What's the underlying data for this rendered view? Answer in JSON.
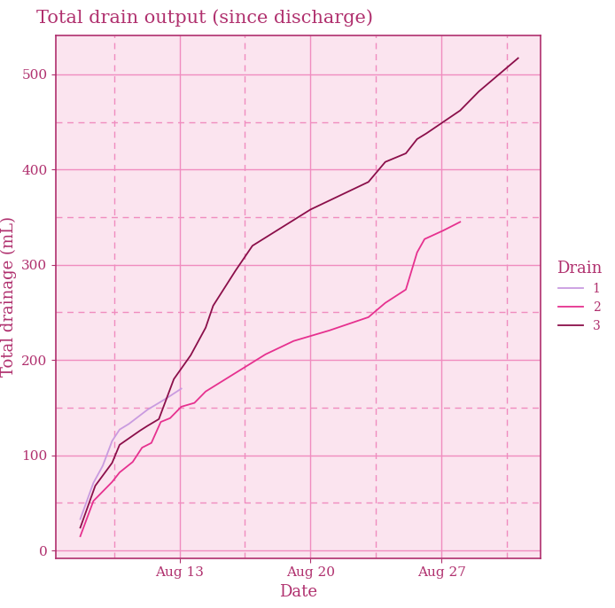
{
  "chart_data": {
    "type": "line",
    "title": "Total drain output (since discharge)",
    "x_label": "Date",
    "y_label": "Total drainage (mL)",
    "legend_title": "Drain",
    "legend": "right",
    "grid": true,
    "xlim": [
      6.4,
      32.3
    ],
    "xticks": [
      {
        "value": 13,
        "label": "Aug 13"
      },
      {
        "value": 20,
        "label": "Aug 20"
      },
      {
        "value": 27,
        "label": "Aug 27"
      }
    ],
    "ylim": [
      -8,
      541
    ],
    "yticks": [
      0,
      100,
      200,
      300,
      400,
      500
    ],
    "series": [
      {
        "name": "1",
        "color": "#c99be0",
        "x": [
          7.7,
          8.4,
          8.9,
          9.4,
          9.8,
          10.3,
          10.9,
          11.3,
          11.9,
          12.4,
          13.1
        ],
        "values": [
          33,
          71,
          89,
          115,
          127,
          133,
          142,
          148,
          155,
          161,
          170
        ]
      },
      {
        "name": "2",
        "color": "#e6318f",
        "x": [
          7.7,
          8.4,
          9.4,
          9.8,
          10.5,
          11.0,
          11.5,
          12.0,
          12.5,
          13.1,
          13.8,
          14.4,
          17.6,
          19.1,
          21.0,
          23.1,
          24.0,
          25.1,
          25.7,
          26.1,
          27.1,
          28.0
        ],
        "values": [
          15,
          52,
          72,
          82,
          93,
          108,
          113,
          135,
          139,
          151,
          155,
          167,
          206,
          220,
          231,
          245,
          260,
          274,
          313,
          327,
          336,
          345
        ]
      },
      {
        "name": "3",
        "color": "#8b0f4a",
        "x": [
          7.7,
          8.5,
          9.4,
          9.8,
          10.9,
          11.3,
          11.9,
          12.7,
          13.6,
          14.4,
          14.8,
          16.0,
          16.9,
          20.0,
          23.1,
          24.0,
          25.1,
          25.7,
          26.2,
          28.0,
          29.0,
          31.1
        ],
        "values": [
          24,
          68,
          92,
          111,
          126,
          131,
          138,
          180,
          205,
          234,
          257,
          294,
          320,
          358,
          387,
          408,
          417,
          432,
          438,
          462,
          482,
          517
        ]
      }
    ]
  }
}
